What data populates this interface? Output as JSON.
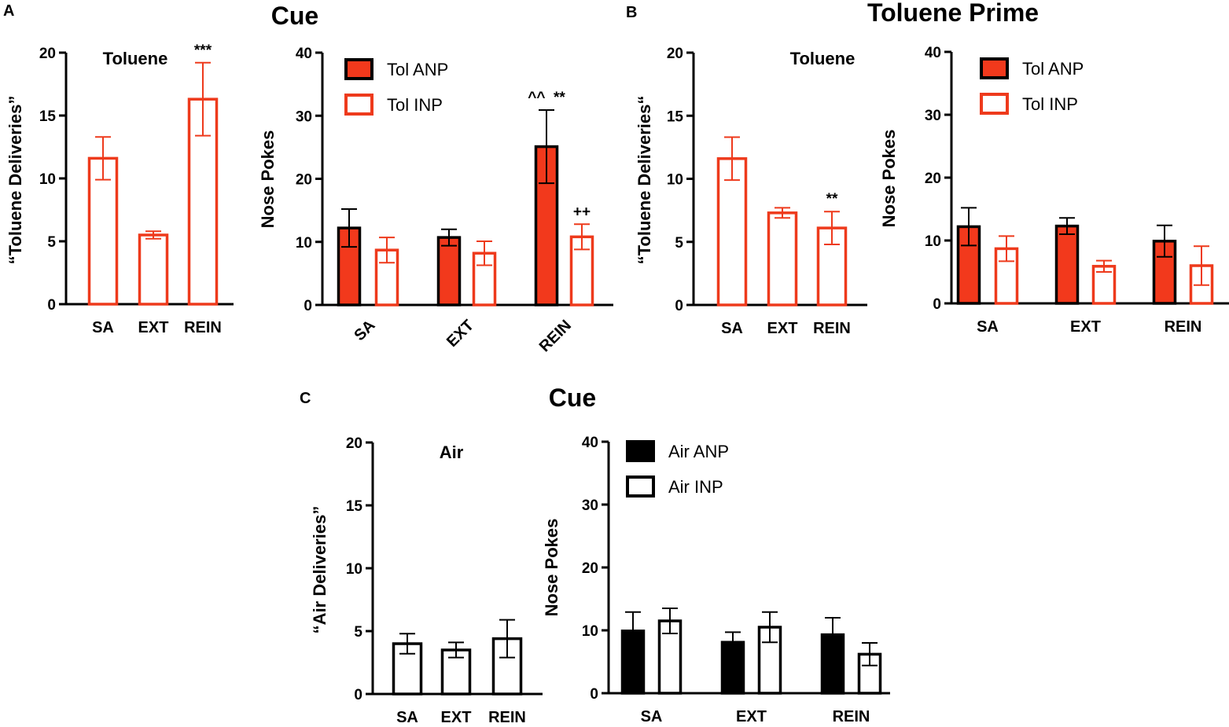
{
  "panel_labels": {
    "A": "A",
    "B": "B",
    "C": "C"
  },
  "group_titles": {
    "A": "Cue",
    "B": "Toluene Prime",
    "C": "Cue"
  },
  "colors": {
    "red": "#ee3a1c",
    "red_fill": "#f2391c",
    "black": "#000000",
    "white": "#ffffff"
  },
  "chart_data": [
    {
      "id": "A1",
      "type": "bar",
      "title": "Toluene",
      "ylabel": "“Toluene Deliveries”",
      "categories": [
        "SA",
        "EXT",
        "REIN"
      ],
      "ylim": [
        0,
        20
      ],
      "yticks": [
        0,
        5,
        10,
        15,
        20
      ],
      "series": [
        {
          "name": "Toluene",
          "style": "red-open",
          "values": [
            11.6,
            5.5,
            16.3
          ],
          "errors": [
            1.7,
            0.3,
            2.9
          ]
        }
      ],
      "annotations": [
        {
          "category": 2,
          "series": 0,
          "text": "***"
        }
      ]
    },
    {
      "id": "A2",
      "type": "bar",
      "title": "",
      "ylabel": "Nose Pokes",
      "categories": [
        "SA",
        "EXT",
        "REIN"
      ],
      "ylim": [
        0,
        40
      ],
      "yticks": [
        0,
        10,
        20,
        30,
        40
      ],
      "rotate_categories": true,
      "legend": [
        "Tol ANP",
        "Tol INP"
      ],
      "series": [
        {
          "name": "Tol ANP",
          "style": "red-filled",
          "values": [
            12.2,
            10.7,
            25.1
          ],
          "errors": [
            3.0,
            1.3,
            5.8
          ]
        },
        {
          "name": "Tol INP",
          "style": "red-open",
          "values": [
            8.7,
            8.2,
            10.8
          ],
          "errors": [
            2.0,
            1.9,
            2.0
          ]
        }
      ],
      "annotations": [
        {
          "category": 2,
          "series": 0,
          "text": "^^  **"
        },
        {
          "category": 2,
          "series": 1,
          "text": "++"
        }
      ]
    },
    {
      "id": "B1",
      "type": "bar",
      "title": "Toluene",
      "ylabel": "“Toluene Deliveries“",
      "categories": [
        "SA",
        "EXT",
        "REIN"
      ],
      "ylim": [
        0,
        20
      ],
      "yticks": [
        0,
        5,
        10,
        15,
        20
      ],
      "series": [
        {
          "name": "Toluene",
          "style": "red-open",
          "values": [
            11.6,
            7.3,
            6.1
          ],
          "errors": [
            1.7,
            0.4,
            1.3
          ]
        }
      ],
      "annotations": [
        {
          "category": 2,
          "series": 0,
          "text": "**"
        }
      ]
    },
    {
      "id": "B2",
      "type": "bar",
      "title": "",
      "ylabel": "Nose Pokes",
      "categories": [
        "SA",
        "EXT",
        "REIN"
      ],
      "ylim": [
        0,
        40
      ],
      "yticks": [
        0,
        10,
        20,
        30,
        40
      ],
      "legend": [
        "Tol ANP",
        "Tol INP"
      ],
      "series": [
        {
          "name": "Tol ANP",
          "style": "red-filled",
          "values": [
            12.2,
            12.3,
            9.9
          ],
          "errors": [
            3.0,
            1.3,
            2.5
          ]
        },
        {
          "name": "Tol INP",
          "style": "red-open",
          "values": [
            8.7,
            5.9,
            6.0
          ],
          "errors": [
            2.0,
            0.9,
            3.1
          ]
        }
      ],
      "annotations": []
    },
    {
      "id": "C1",
      "type": "bar",
      "title": "Air",
      "ylabel": "“Air Deliveries”",
      "categories": [
        "SA",
        "EXT",
        "REIN"
      ],
      "ylim": [
        0,
        20
      ],
      "yticks": [
        0,
        5,
        10,
        15,
        20
      ],
      "series": [
        {
          "name": "Air",
          "style": "black-open",
          "values": [
            4.0,
            3.5,
            4.4
          ],
          "errors": [
            0.8,
            0.6,
            1.5
          ]
        }
      ],
      "annotations": []
    },
    {
      "id": "C2",
      "type": "bar",
      "title": "",
      "ylabel": "Nose Pokes",
      "categories": [
        "SA",
        "EXT",
        "REIN"
      ],
      "ylim": [
        0,
        40
      ],
      "yticks": [
        0,
        10,
        20,
        30,
        40
      ],
      "legend": [
        "Air ANP",
        "Air INP"
      ],
      "series": [
        {
          "name": "Air ANP",
          "style": "black-filled",
          "values": [
            9.9,
            8.1,
            9.3
          ],
          "errors": [
            3.0,
            1.6,
            2.7
          ]
        },
        {
          "name": "Air INP",
          "style": "black-open",
          "values": [
            11.5,
            10.5,
            6.2
          ],
          "errors": [
            2.0,
            2.4,
            1.8
          ]
        }
      ],
      "annotations": []
    }
  ]
}
